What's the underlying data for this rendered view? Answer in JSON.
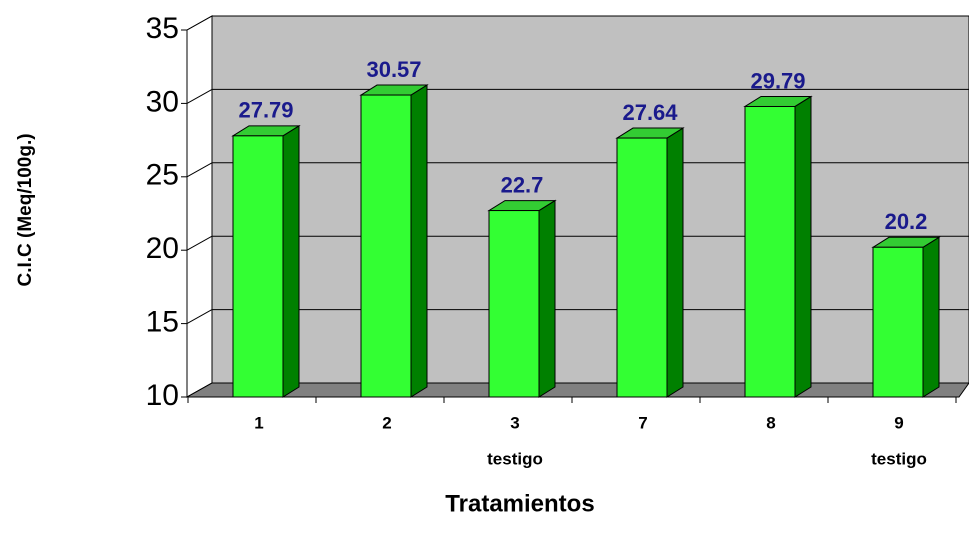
{
  "chart_data": {
    "type": "bar3d",
    "ylabel": "C.I.C (Meq/100g.)",
    "xlabel": "Tratamientos",
    "categories": [
      [
        "1"
      ],
      [
        "2"
      ],
      [
        "3",
        "testigo"
      ],
      [
        "7"
      ],
      [
        "8"
      ],
      [
        "9",
        "testigo"
      ]
    ],
    "values": [
      27.79,
      30.57,
      22.7,
      27.64,
      29.79,
      20.2
    ],
    "color": "#33ff33",
    "wall_color": "#c0c0c0",
    "floor_color": "#808080",
    "label_color": "#1a1a8c",
    "ylim": [
      10,
      35
    ],
    "yticks": [
      10,
      15,
      20,
      25,
      30,
      35
    ],
    "grid": true
  }
}
